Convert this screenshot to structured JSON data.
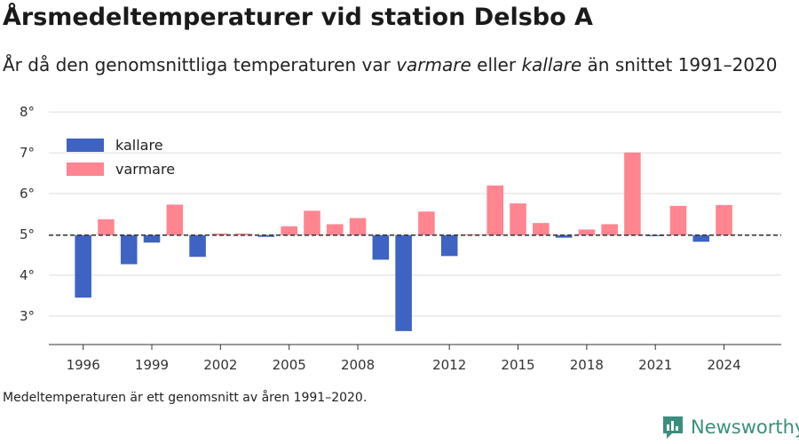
{
  "header": {
    "title": "Årsmedeltemperaturer vid station Delsbo A",
    "subtitle_part1": "År då den genomsnittliga temperaturen var ",
    "subtitle_em1": "varmare",
    "subtitle_part2": " eller ",
    "subtitle_em2": "kallare",
    "subtitle_part3": " än snittet 1991–2020"
  },
  "caption": "Medeltemperaturen är ett genomsnitt av åren 1991–2020.",
  "brand": {
    "name": "Newsworthy",
    "icon": "newsworthy-logo-icon",
    "color": "#3b8e7d"
  },
  "chart_data": {
    "type": "bar",
    "baseline": 4.98,
    "ylim": [
      2.3,
      8.2
    ],
    "yticks": [
      3,
      4,
      5,
      6,
      7,
      8
    ],
    "ytick_labels": [
      "3°",
      "4°",
      "5°",
      "6°",
      "7°",
      "8°"
    ],
    "xlim": [
      1994.5,
      2026.5
    ],
    "xticks": [
      1996,
      1999,
      2002,
      2005,
      2008,
      2012,
      2015,
      2018,
      2021,
      2024
    ],
    "xtick_labels": [
      "1996",
      "1999",
      "2002",
      "2005",
      "2008",
      "2012",
      "2015",
      "2018",
      "2021",
      "2024"
    ],
    "grid": true,
    "legend_position": "top-left",
    "colors": {
      "kallare": "#3f63c2",
      "varmare": "#ff8591",
      "baseline": "#333333",
      "grid": "#dddddd"
    },
    "legend": [
      {
        "label": "kallare",
        "color": "#3f63c2"
      },
      {
        "label": "varmare",
        "color": "#ff8591"
      }
    ],
    "years": [
      1996,
      1997,
      1998,
      1999,
      2000,
      2001,
      2002,
      2003,
      2004,
      2005,
      2006,
      2007,
      2008,
      2009,
      2010,
      2011,
      2012,
      2013,
      2014,
      2015,
      2016,
      2017,
      2018,
      2019,
      2020,
      2021,
      2022,
      2023,
      2024
    ],
    "values": [
      3.45,
      5.37,
      4.27,
      4.8,
      5.73,
      4.45,
      5.02,
      5.02,
      4.94,
      5.2,
      5.58,
      5.25,
      5.4,
      4.38,
      2.63,
      5.56,
      4.47,
      5.0,
      6.2,
      5.76,
      5.28,
      4.92,
      5.12,
      5.25,
      7.01,
      4.97,
      5.7,
      4.82,
      5.72
    ]
  }
}
